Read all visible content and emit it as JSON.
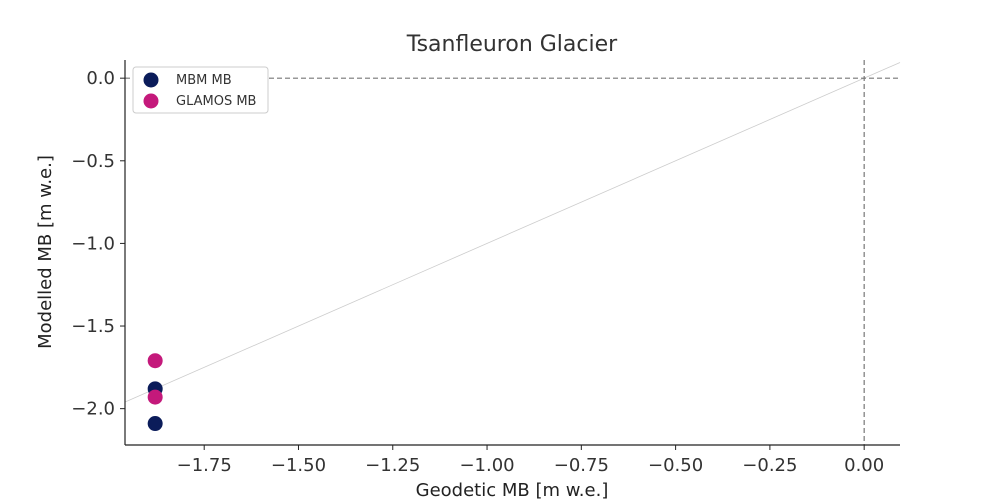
{
  "chart_data": {
    "type": "scatter",
    "title": "Tsanfleuron Glacier",
    "xlabel": "Geodetic MB [m w.e.]",
    "ylabel": "Modelled MB [m w.e.]",
    "xlim": [
      -1.96,
      0.095
    ],
    "ylim": [
      -2.22,
      0.11
    ],
    "x_ticks": [
      -1.75,
      -1.5,
      -1.25,
      -1.0,
      -0.75,
      -0.5,
      -0.25,
      0.0
    ],
    "x_tick_labels": [
      "−1.75",
      "−1.50",
      "−1.25",
      "−1.00",
      "−0.75",
      "−0.50",
      "−0.25",
      "0.00"
    ],
    "y_ticks": [
      0.0,
      -0.5,
      -1.0,
      -1.5,
      -2.0
    ],
    "y_tick_labels": [
      "0.0",
      "−0.5",
      "−1.0",
      "−1.5",
      "−2.0"
    ],
    "legend_position": "top-left",
    "grid": false,
    "reference_lines": {
      "identity": true,
      "zero_x": true,
      "zero_y": true
    },
    "series": [
      {
        "name": "MBM MB",
        "color": "#0b1c5a",
        "points": [
          {
            "x": -1.88,
            "y": -1.88
          },
          {
            "x": -1.88,
            "y": -2.09
          }
        ]
      },
      {
        "name": "GLAMOS MB",
        "color": "#c4197b",
        "points": [
          {
            "x": -1.88,
            "y": -1.71
          },
          {
            "x": -1.88,
            "y": -1.93
          }
        ]
      }
    ]
  }
}
